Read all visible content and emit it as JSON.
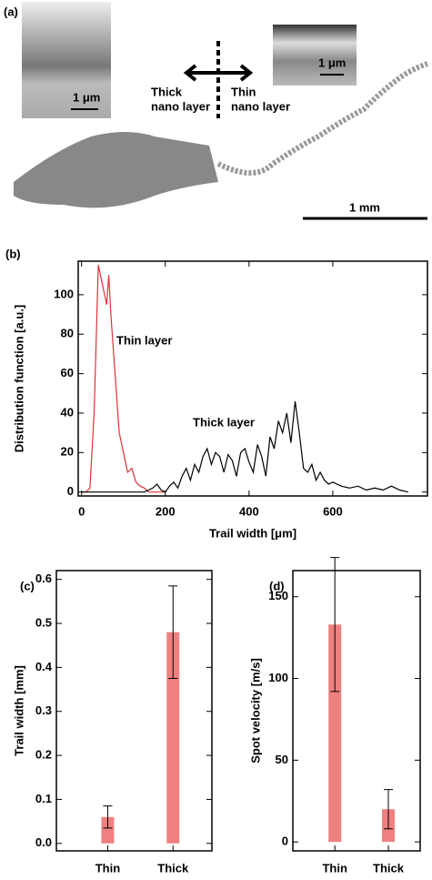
{
  "figure_a": {
    "panel_label": "(a)",
    "left_text": [
      "Thick",
      "nano layer"
    ],
    "right_text": [
      "Thin",
      "nano layer"
    ],
    "scale_left": "1 μm",
    "scale_right": "1 μm",
    "scale_main": "1 mm"
  },
  "chart_data": [
    {
      "type": "line",
      "panel_label": "(b)",
      "x_label": "Trail width [μm]",
      "y_label": "Distribution function [a.u.]",
      "xlim": [
        -8,
        826
      ],
      "ylim": [
        -2,
        117
      ],
      "xticks": [
        0,
        200,
        400,
        600
      ],
      "yticks": [
        0,
        20,
        40,
        60,
        80,
        100
      ],
      "series": [
        {
          "name": "Thin layer",
          "color": "#e0303a",
          "x": [
            0,
            10,
            20,
            30,
            40,
            50,
            60,
            65,
            70,
            80,
            90,
            100,
            110,
            120,
            130,
            140,
            150,
            160,
            180,
            200
          ],
          "values": [
            0,
            0,
            2,
            40,
            115,
            105,
            95,
            110,
            90,
            60,
            30,
            20,
            10,
            12,
            5,
            3,
            2,
            0,
            0,
            0
          ]
        },
        {
          "name": "Thick layer",
          "color": "#000000",
          "x": [
            0,
            50,
            100,
            150,
            170,
            180,
            190,
            200,
            210,
            220,
            230,
            240,
            250,
            260,
            270,
            280,
            290,
            300,
            310,
            320,
            330,
            340,
            350,
            360,
            370,
            380,
            390,
            400,
            410,
            420,
            430,
            440,
            450,
            460,
            470,
            480,
            490,
            500,
            510,
            520,
            530,
            540,
            550,
            560,
            570,
            580,
            590,
            600,
            620,
            640,
            660,
            680,
            700,
            720,
            740,
            760,
            780
          ],
          "values": [
            0,
            0,
            0,
            0,
            2,
            4,
            1,
            0,
            3,
            5,
            2,
            8,
            12,
            6,
            14,
            10,
            18,
            22,
            14,
            20,
            18,
            10,
            19,
            16,
            8,
            20,
            22,
            15,
            10,
            24,
            18,
            8,
            28,
            22,
            36,
            30,
            40,
            25,
            46,
            30,
            12,
            10,
            14,
            6,
            10,
            6,
            4,
            5,
            3,
            2,
            3,
            1,
            2,
            1,
            3,
            1,
            0
          ]
        }
      ]
    },
    {
      "type": "bar",
      "panel_label": "(c)",
      "y_label": "Trail width [mm]",
      "color": "#f08080",
      "categories": [
        "Thin",
        "Thick"
      ],
      "values": [
        0.06,
        0.48
      ],
      "errors": [
        0.025,
        0.105
      ],
      "ylim": [
        -0.017,
        0.62
      ],
      "yticks": [
        {
          "value": 0,
          "label": "0.0"
        },
        0.1,
        0.2,
        0.3,
        0.4,
        0.5,
        0.6
      ]
    },
    {
      "type": "bar",
      "panel_label": "(d)",
      "y_label": "Spot velocity [m/s]",
      "color": "#f08080",
      "categories": [
        "Thin",
        "Thick"
      ],
      "values": [
        133,
        20
      ],
      "errors": [
        41,
        12
      ],
      "ylim": [
        -5.5,
        166
      ],
      "yticks": [
        0,
        50,
        100,
        150
      ]
    }
  ]
}
